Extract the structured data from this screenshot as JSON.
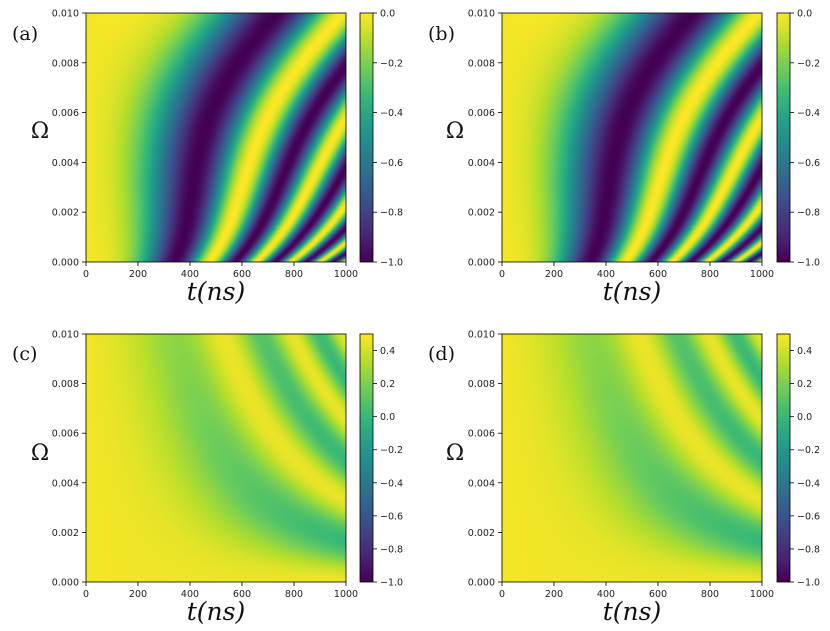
{
  "chart_data": [
    {
      "type": "heatmap",
      "panel_label": "(a)",
      "xlabel": "t(ns)",
      "ylabel": "Ω",
      "xlim": [
        0,
        1000
      ],
      "ylim": [
        0.0,
        0.01
      ],
      "x_ticks": [
        "0",
        "200",
        "400",
        "600",
        "800",
        "1000"
      ],
      "y_ticks": [
        "0.000",
        "0.002",
        "0.004",
        "0.006",
        "0.008",
        "0.010"
      ],
      "colorbar": {
        "min": -1.0,
        "max": 0.0,
        "ticks": [
          "0.0",
          "−0.2",
          "−0.4",
          "−0.6",
          "−0.8",
          "−1.0"
        ],
        "colormap": "viridis"
      },
      "field_kind": "bent"
    },
    {
      "type": "heatmap",
      "panel_label": "(b)",
      "xlabel": "t(ns)",
      "ylabel": "Ω",
      "xlim": [
        0,
        1000
      ],
      "ylim": [
        0.0,
        0.01
      ],
      "x_ticks": [
        "0",
        "200",
        "400",
        "600",
        "800",
        "1000"
      ],
      "y_ticks": [
        "0.000",
        "0.002",
        "0.004",
        "0.006",
        "0.008",
        "0.010"
      ],
      "colorbar": {
        "min": -1.0,
        "max": 0.0,
        "ticks": [
          "0.0",
          "−0.2",
          "−0.4",
          "−0.6",
          "−0.8",
          "−1.0"
        ],
        "colormap": "viridis"
      },
      "field_kind": "bent"
    },
    {
      "type": "heatmap",
      "panel_label": "(c)",
      "xlabel": "t(ns)",
      "ylabel": "Ω",
      "xlim": [
        0,
        1000
      ],
      "ylim": [
        0.0,
        0.01
      ],
      "x_ticks": [
        "0",
        "200",
        "400",
        "600",
        "800",
        "1000"
      ],
      "y_ticks": [
        "0.000",
        "0.002",
        "0.004",
        "0.006",
        "0.008",
        "0.010"
      ],
      "colorbar": {
        "min": -1.0,
        "max": 0.5,
        "ticks": [
          "0.4",
          "0.2",
          "0.0",
          "−0.2",
          "−0.4",
          "−0.6",
          "−0.8",
          "−1.0"
        ],
        "colormap": "viridis"
      },
      "field_kind": "checker"
    },
    {
      "type": "heatmap",
      "panel_label": "(d)",
      "xlabel": "t(ns)",
      "ylabel": "Ω",
      "xlim": [
        0,
        1000
      ],
      "ylim": [
        0.0,
        0.01
      ],
      "x_ticks": [
        "0",
        "200",
        "400",
        "600",
        "800",
        "1000"
      ],
      "y_ticks": [
        "0.000",
        "0.002",
        "0.004",
        "0.006",
        "0.008",
        "0.010"
      ],
      "colorbar": {
        "min": -1.0,
        "max": 0.5,
        "ticks": [
          "0.4",
          "0.2",
          "0.0",
          "−0.2",
          "−0.4",
          "−0.6",
          "−0.8",
          "−1.0"
        ],
        "colormap": "viridis"
      },
      "field_kind": "checker"
    }
  ]
}
